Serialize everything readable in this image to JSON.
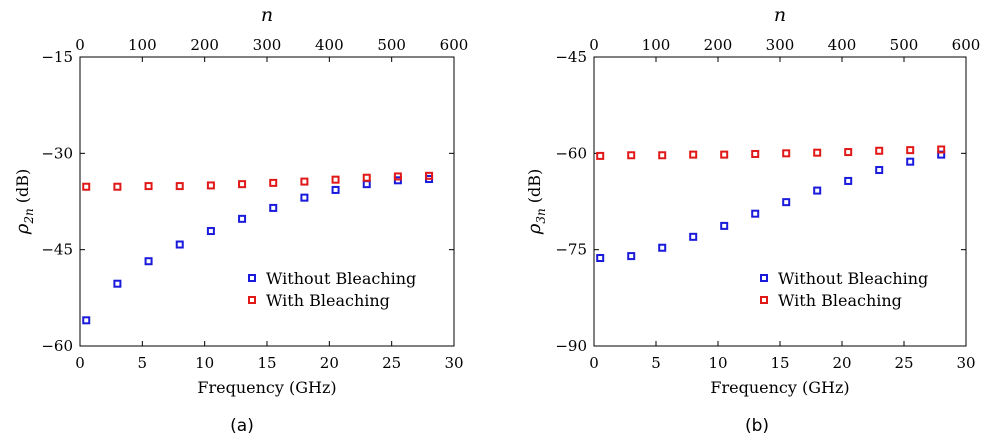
{
  "chart_data": [
    {
      "type": "scatter",
      "caption": "(a)",
      "xlabel": "Frequency (GHz)",
      "ylabel_main": "ρ",
      "ylabel_sub": "2n",
      "ylabel_unit": " (dB)",
      "top_axis_label": "n",
      "xlim": [
        0,
        30
      ],
      "ylim": [
        -60,
        -15
      ],
      "x_ticks": [
        0,
        5,
        10,
        15,
        20,
        25,
        30
      ],
      "y_ticks": [
        -60,
        -45,
        -30,
        -15
      ],
      "top_ticks": [
        0,
        100,
        200,
        300,
        400,
        500,
        600
      ],
      "top_xlim": [
        0,
        600
      ],
      "grid": false,
      "legend_position": "lower-right",
      "series": [
        {
          "name": "Without Bleaching",
          "color": "#1a1adb",
          "points": [
            [
              0.5,
              -56.0
            ],
            [
              3.0,
              -50.3
            ],
            [
              5.5,
              -46.8
            ],
            [
              8.0,
              -44.2
            ],
            [
              10.5,
              -42.1
            ],
            [
              13.0,
              -40.2
            ],
            [
              15.5,
              -38.5
            ],
            [
              18.0,
              -36.9
            ],
            [
              20.5,
              -35.7
            ],
            [
              23.0,
              -34.8
            ],
            [
              25.5,
              -34.2
            ],
            [
              28.0,
              -34.0
            ]
          ]
        },
        {
          "name": "With Bleaching",
          "color": "#e01818",
          "points": [
            [
              0.5,
              -35.2
            ],
            [
              3.0,
              -35.2
            ],
            [
              5.5,
              -35.1
            ],
            [
              8.0,
              -35.1
            ],
            [
              10.5,
              -35.0
            ],
            [
              13.0,
              -34.8
            ],
            [
              15.5,
              -34.6
            ],
            [
              18.0,
              -34.4
            ],
            [
              20.5,
              -34.1
            ],
            [
              23.0,
              -33.8
            ],
            [
              25.5,
              -33.6
            ],
            [
              28.0,
              -33.5
            ]
          ]
        }
      ]
    },
    {
      "type": "scatter",
      "caption": "(b)",
      "xlabel": "Frequency (GHz)",
      "ylabel_main": "ρ",
      "ylabel_sub": "3n",
      "ylabel_unit": " (dB)",
      "top_axis_label": "n",
      "xlim": [
        0,
        30
      ],
      "ylim": [
        -90,
        -45
      ],
      "x_ticks": [
        0,
        5,
        10,
        15,
        20,
        25,
        30
      ],
      "y_ticks": [
        -90,
        -75,
        -60,
        -45
      ],
      "top_ticks": [
        0,
        100,
        200,
        300,
        400,
        500,
        600
      ],
      "top_xlim": [
        0,
        600
      ],
      "grid": false,
      "legend_position": "lower-right",
      "series": [
        {
          "name": "Without Bleaching",
          "color": "#1a1adb",
          "points": [
            [
              0.5,
              -76.3
            ],
            [
              3.0,
              -76.0
            ],
            [
              5.5,
              -74.7
            ],
            [
              8.0,
              -73.0
            ],
            [
              10.5,
              -71.3
            ],
            [
              13.0,
              -69.4
            ],
            [
              15.5,
              -67.6
            ],
            [
              18.0,
              -65.8
            ],
            [
              20.5,
              -64.3
            ],
            [
              23.0,
              -62.6
            ],
            [
              25.5,
              -61.3
            ],
            [
              28.0,
              -60.2
            ]
          ]
        },
        {
          "name": "With Bleaching",
          "color": "#e01818",
          "points": [
            [
              0.5,
              -60.4
            ],
            [
              3.0,
              -60.3
            ],
            [
              5.5,
              -60.3
            ],
            [
              8.0,
              -60.2
            ],
            [
              10.5,
              -60.2
            ],
            [
              13.0,
              -60.1
            ],
            [
              15.5,
              -60.0
            ],
            [
              18.0,
              -59.9
            ],
            [
              20.5,
              -59.8
            ],
            [
              23.0,
              -59.6
            ],
            [
              25.5,
              -59.5
            ],
            [
              28.0,
              -59.4
            ]
          ]
        }
      ]
    }
  ]
}
